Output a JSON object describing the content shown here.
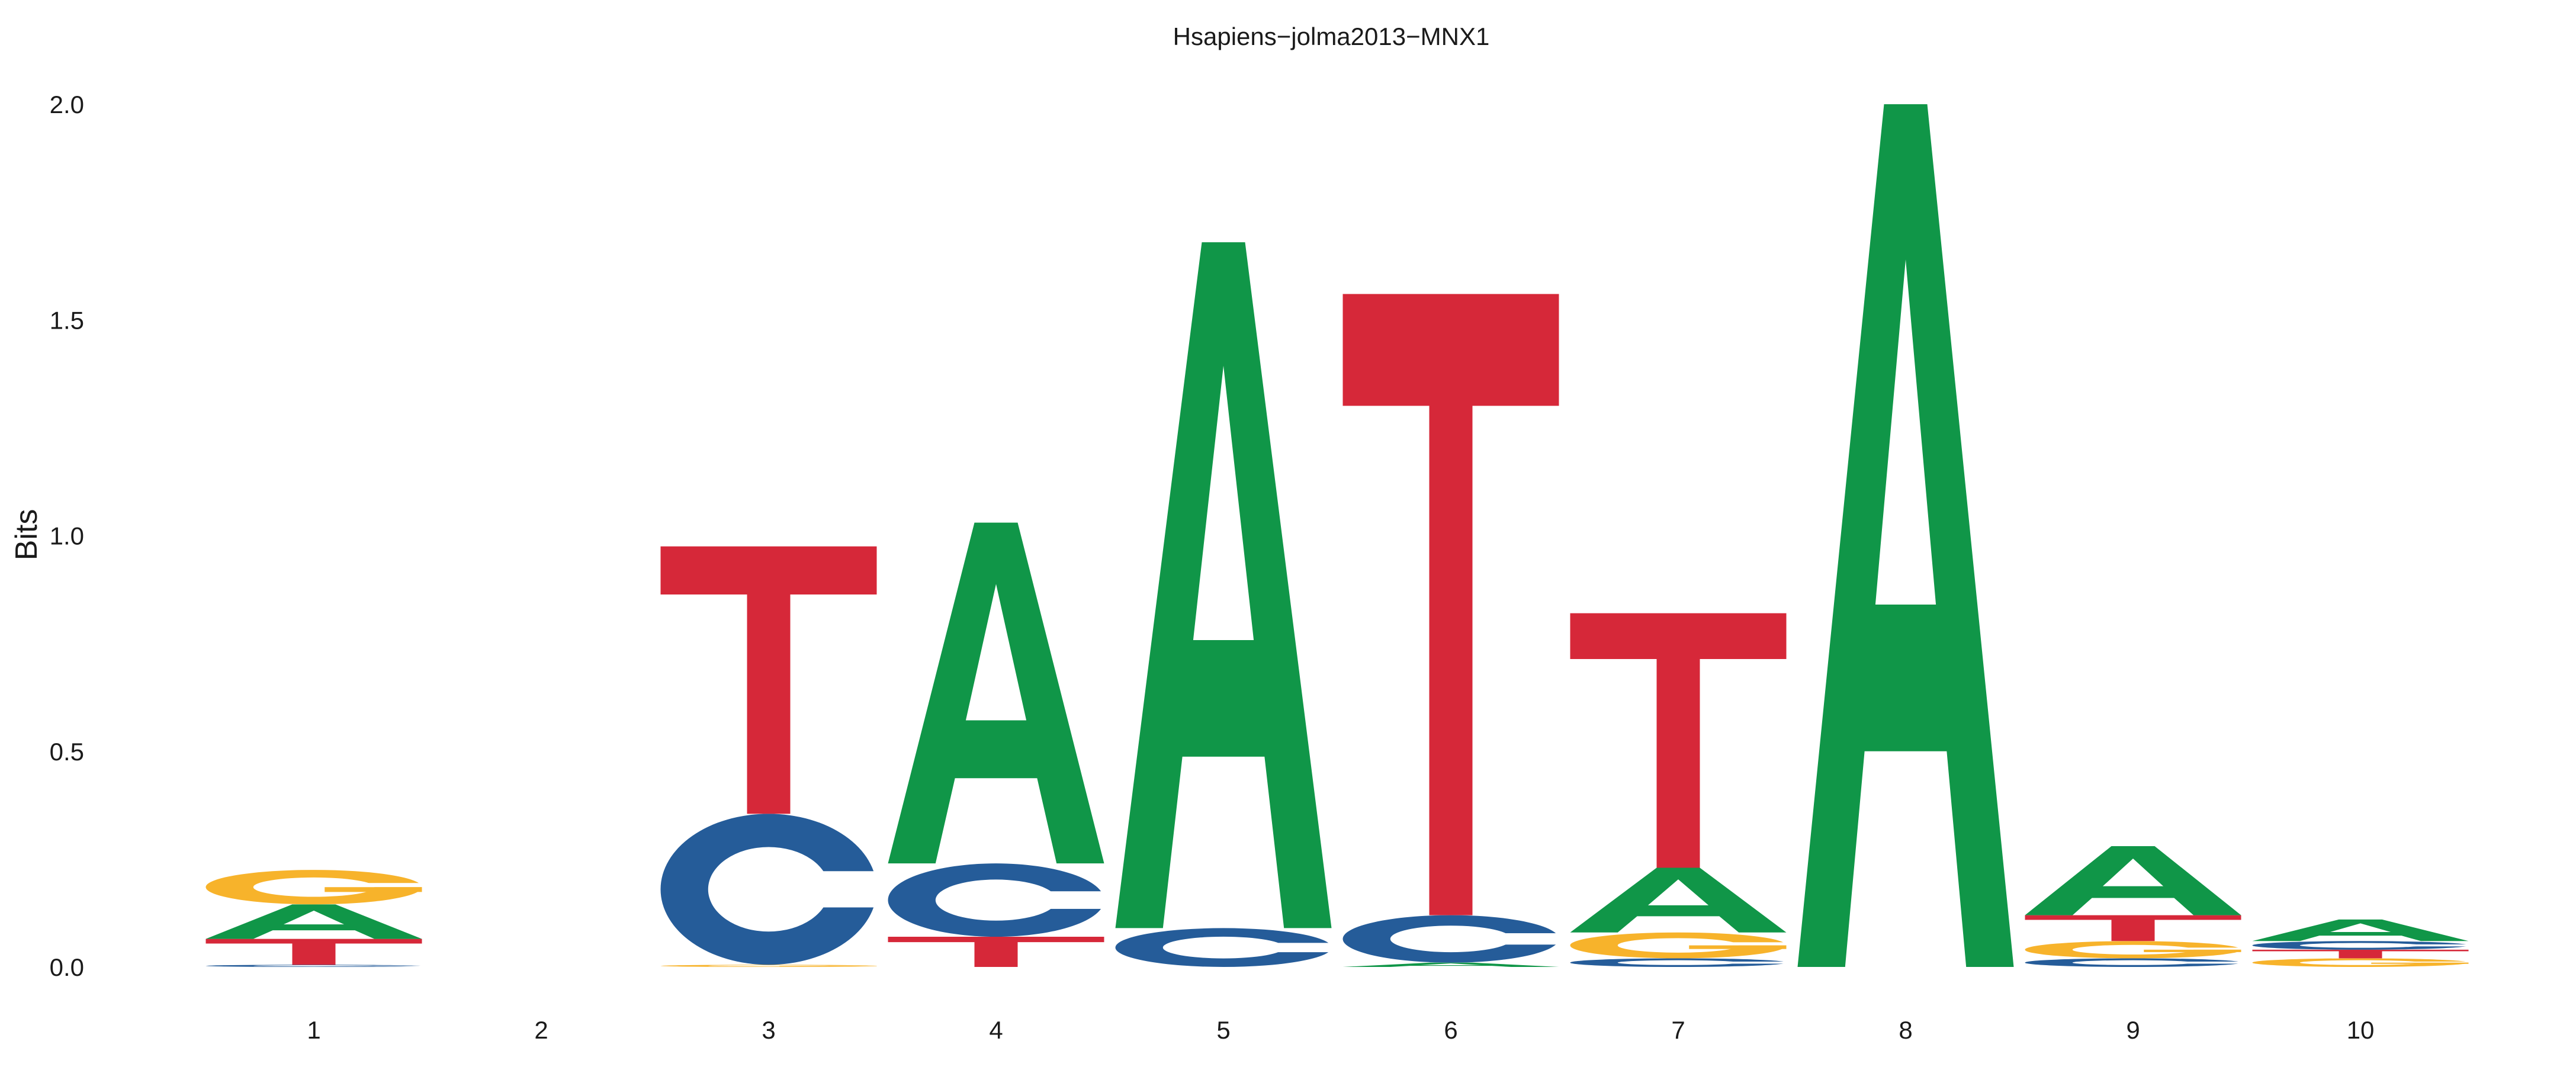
{
  "chart_data": {
    "type": "sequence-logo",
    "title": "Hsapiens−jolma2013−MNX1",
    "ylabel": "Bits",
    "xlabel": "",
    "ylim": [
      0,
      2
    ],
    "y_ticks": [
      "0.0",
      "0.5",
      "1.0",
      "1.5",
      "2.0"
    ],
    "y_tick_values": [
      0,
      0.5,
      1.0,
      1.5,
      2.0
    ],
    "categories": [
      "1",
      "2",
      "3",
      "4",
      "5",
      "6",
      "7",
      "8",
      "9",
      "10"
    ],
    "colors": {
      "A": "#109648",
      "C": "#255C99",
      "G": "#F7B32B",
      "T": "#D62839"
    },
    "positions": [
      {
        "position": "1",
        "letters": [
          {
            "base": "C",
            "bits": 0.005
          },
          {
            "base": "T",
            "bits": 0.06
          },
          {
            "base": "A",
            "bits": 0.08
          },
          {
            "base": "G",
            "bits": 0.08
          }
        ]
      },
      {
        "position": "2",
        "letters": []
      },
      {
        "position": "3",
        "letters": [
          {
            "base": "G",
            "bits": 0.005
          },
          {
            "base": "C",
            "bits": 0.35
          },
          {
            "base": "T",
            "bits": 0.62
          }
        ]
      },
      {
        "position": "4",
        "letters": [
          {
            "base": "T",
            "bits": 0.07
          },
          {
            "base": "C",
            "bits": 0.17
          },
          {
            "base": "A",
            "bits": 0.79
          }
        ]
      },
      {
        "position": "5",
        "letters": [
          {
            "base": "C",
            "bits": 0.09
          },
          {
            "base": "A",
            "bits": 1.59
          }
        ]
      },
      {
        "position": "6",
        "letters": [
          {
            "base": "A",
            "bits": 0.01
          },
          {
            "base": "C",
            "bits": 0.11
          },
          {
            "base": "T",
            "bits": 1.44
          }
        ]
      },
      {
        "position": "7",
        "letters": [
          {
            "base": "C",
            "bits": 0.02
          },
          {
            "base": "G",
            "bits": 0.06
          },
          {
            "base": "A",
            "bits": 0.15
          },
          {
            "base": "T",
            "bits": 0.59
          }
        ]
      },
      {
        "position": "8",
        "letters": [
          {
            "base": "A",
            "bits": 2.0
          }
        ]
      },
      {
        "position": "9",
        "letters": [
          {
            "base": "C",
            "bits": 0.02
          },
          {
            "base": "G",
            "bits": 0.04
          },
          {
            "base": "T",
            "bits": 0.06
          },
          {
            "base": "A",
            "bits": 0.16
          }
        ]
      },
      {
        "position": "10",
        "letters": [
          {
            "base": "G",
            "bits": 0.02
          },
          {
            "base": "T",
            "bits": 0.02
          },
          {
            "base": "C",
            "bits": 0.02
          },
          {
            "base": "A",
            "bits": 0.05
          }
        ]
      }
    ]
  }
}
